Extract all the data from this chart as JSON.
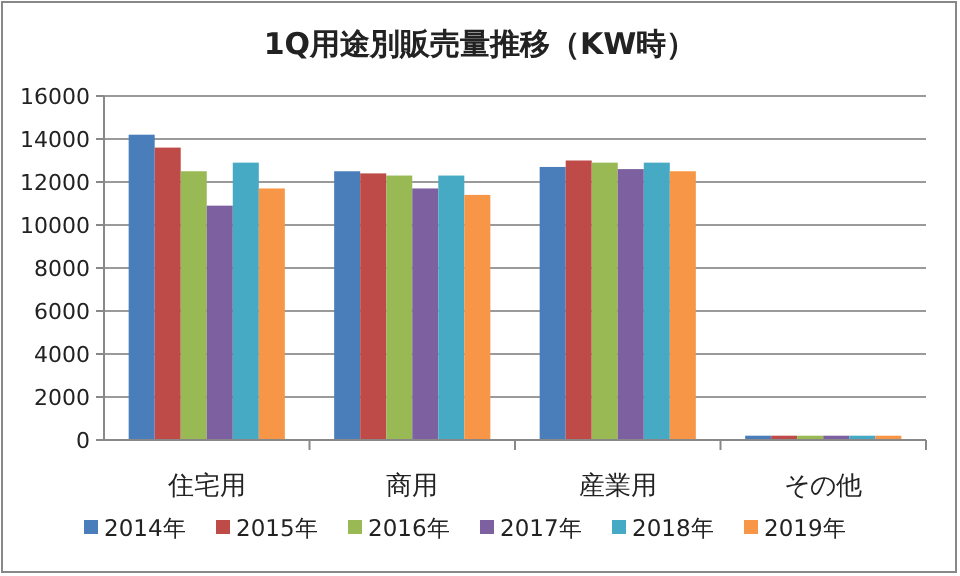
{
  "chart_data": {
    "type": "bar",
    "title": "1Q用途別販売量推移（KW時）",
    "categories": [
      "住宅用",
      "商用",
      "産業用",
      "その他"
    ],
    "series": [
      {
        "name": "2014年",
        "color": "#4a7ebb",
        "values": [
          14200,
          12500,
          12700,
          200
        ]
      },
      {
        "name": "2015年",
        "color": "#be4b48",
        "values": [
          13600,
          12400,
          13000,
          200
        ]
      },
      {
        "name": "2016年",
        "color": "#98b954",
        "values": [
          12500,
          12300,
          12900,
          200
        ]
      },
      {
        "name": "2017年",
        "color": "#7d60a0",
        "values": [
          10900,
          11700,
          12600,
          200
        ]
      },
      {
        "name": "2018年",
        "color": "#46aac5",
        "values": [
          12900,
          12300,
          12900,
          200
        ]
      },
      {
        "name": "2019年",
        "color": "#f79646",
        "values": [
          11700,
          11400,
          12500,
          200
        ]
      }
    ],
    "ylim": [
      0,
      16000
    ],
    "yticks": [
      0,
      2000,
      4000,
      6000,
      8000,
      10000,
      12000,
      14000,
      16000
    ],
    "grid": "y",
    "legend": "bottom"
  }
}
